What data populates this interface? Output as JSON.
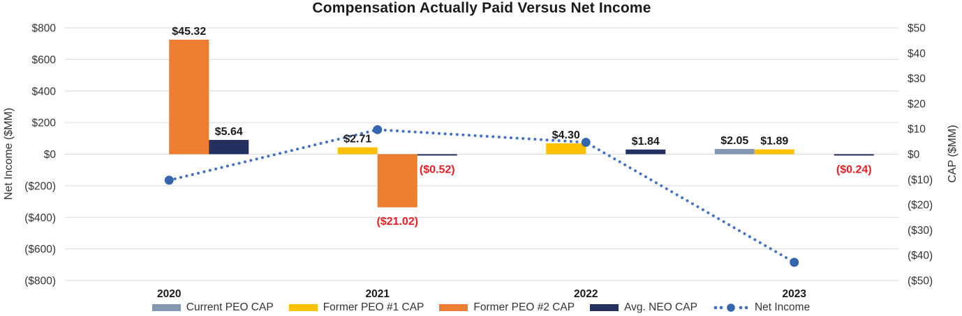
{
  "chart_data": {
    "type": "bar",
    "subtype": "clustered-bars-with-dotted-line-dual-axis",
    "title": "Compensation Actually Paid Versus Net Income",
    "categories": [
      "2020",
      "2021",
      "2022",
      "2023"
    ],
    "bar_series": [
      {
        "name": "Current PEO CAP",
        "color": "#8497B0",
        "axis": "right",
        "values": [
          null,
          null,
          null,
          2.05
        ],
        "labels": [
          null,
          null,
          null,
          "$2.05"
        ]
      },
      {
        "name": "Former PEO #1 CAP",
        "color": "#FFC000",
        "axis": "right",
        "values": [
          null,
          2.71,
          4.3,
          1.89
        ],
        "labels": [
          null,
          "$2.71",
          "$4.30",
          "$1.89"
        ]
      },
      {
        "name": "Former PEO #2 CAP",
        "color": "#ED7D31",
        "axis": "right",
        "values": [
          45.32,
          -21.02,
          null,
          null
        ],
        "labels": [
          "$45.32",
          "($21.02)",
          null,
          null
        ]
      },
      {
        "name": "Avg. NEO CAP",
        "color": "#24305F",
        "axis": "right",
        "values": [
          5.64,
          -0.52,
          1.84,
          -0.24
        ],
        "labels": [
          "$5.64",
          "($0.52)",
          "$1.84",
          "($0.24)"
        ]
      }
    ],
    "line_series": {
      "name": "Net Income",
      "axis": "left",
      "color": "#4472C4",
      "marker_color": "#3565AE",
      "style": "dotted-with-round-markers",
      "values_estimated": [
        -165,
        155,
        75,
        -685
      ]
    },
    "left_axis": {
      "label": "Net Income ($MM)",
      "min": -800,
      "max": 800,
      "step": 200,
      "tick_values": [
        800,
        600,
        400,
        200,
        0,
        -200,
        -400,
        -600,
        -800
      ],
      "ticks": [
        "$800",
        "$600",
        "$400",
        "$200",
        "$0",
        "($200)",
        "($400)",
        "($600)",
        "($800)"
      ]
    },
    "right_axis": {
      "label": "CAP ($MM)",
      "min": -50,
      "max": 50,
      "step": 10,
      "tick_values": [
        50,
        40,
        30,
        20,
        10,
        0,
        -10,
        -20,
        -30,
        -40,
        -50
      ],
      "ticks": [
        "$50",
        "$40",
        "$30",
        "$20",
        "$10",
        "$0",
        "($10)",
        "($20)",
        "($30)",
        "($40)",
        "($50)"
      ]
    },
    "grid": true,
    "legend_position": "bottom"
  },
  "legend": {
    "items": [
      {
        "label": "Current PEO CAP",
        "color": "#8497B0",
        "type": "swatch"
      },
      {
        "label": "Former PEO #1 CAP",
        "color": "#FFC000",
        "type": "swatch"
      },
      {
        "label": "Former PEO #2 CAP",
        "color": "#ED7D31",
        "type": "swatch"
      },
      {
        "label": "Avg. NEO CAP",
        "color": "#24305F",
        "type": "swatch"
      },
      {
        "label": "Net Income",
        "color": "#4472C4",
        "type": "dotted-line",
        "marker_color": "#3565AE"
      }
    ]
  },
  "style": {
    "background": "#FFFFFF",
    "gridline_color": "#D9D9D9",
    "tick_color": "#333333",
    "label_color": "#1A1A1A",
    "negative_label_color": "#ED1C24"
  }
}
